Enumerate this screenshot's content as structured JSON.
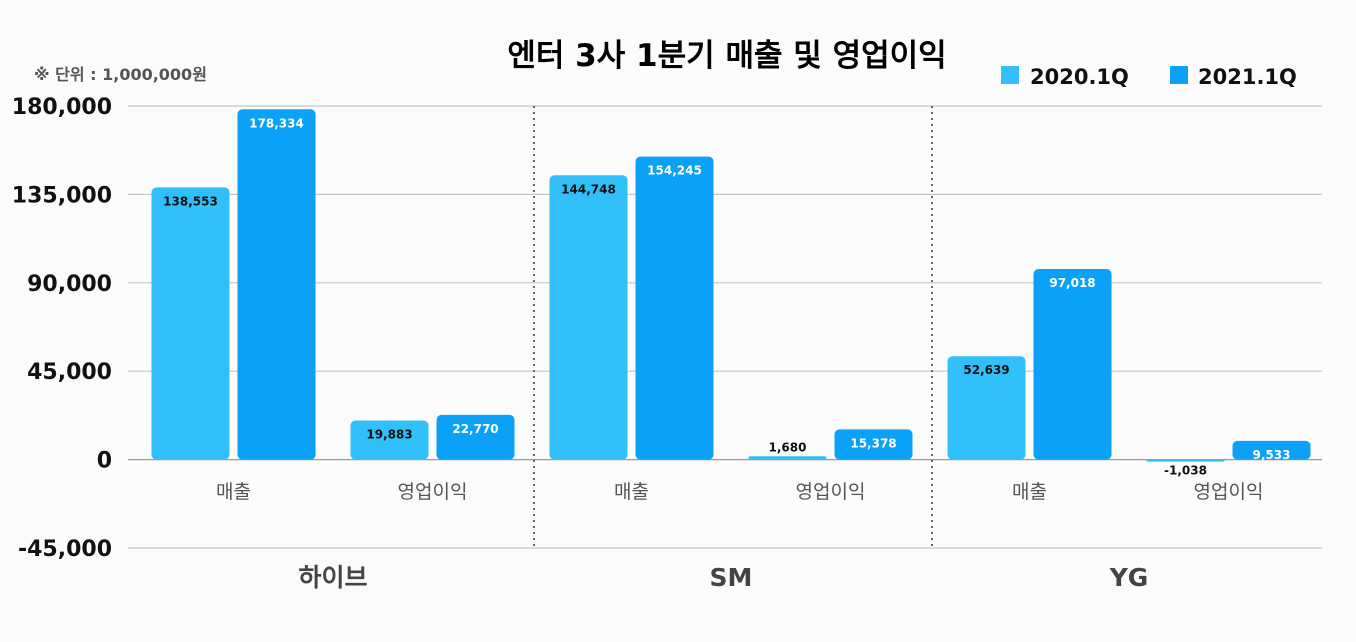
{
  "chart_data": {
    "type": "bar",
    "title": "엔터 3사 1분기 매출 및 영업이익",
    "unit_note": "※ 단위 : 1,000,000원",
    "ylim": [
      -45000,
      180000
    ],
    "yticks": [
      -45000,
      0,
      45000,
      90000,
      135000,
      180000
    ],
    "ytick_labels": [
      "-45,000",
      "0",
      "45,000",
      "90,000",
      "135,000",
      "180,000"
    ],
    "grid": true,
    "legend_position": "top-right",
    "groups": [
      "하이브",
      "SM",
      "YG"
    ],
    "categories": [
      "매출",
      "영업이익"
    ],
    "series": [
      {
        "name": "2020.1Q",
        "color": "#30bff9",
        "values": [
          [
            138553,
            19883
          ],
          [
            144748,
            1680
          ],
          [
            52639,
            -1038
          ]
        ],
        "labels": [
          [
            "138,553",
            "19,883"
          ],
          [
            "144,748",
            "1,680"
          ],
          [
            "52,639",
            "-1,038"
          ]
        ]
      },
      {
        "name": "2021.1Q",
        "color": "#0aa1f7",
        "values": [
          [
            178334,
            22770
          ],
          [
            154245,
            15378
          ],
          [
            97018,
            9533
          ]
        ],
        "labels": [
          [
            "178,334",
            "22,770"
          ],
          [
            "154,245",
            "15,378"
          ],
          [
            "97,018",
            "9,533"
          ]
        ]
      }
    ]
  }
}
